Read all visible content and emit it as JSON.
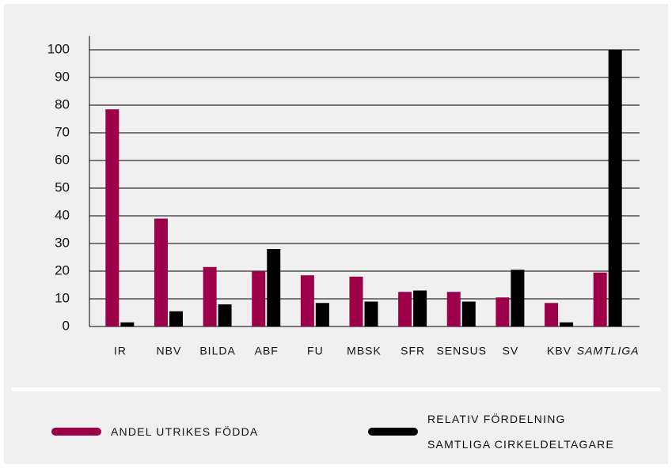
{
  "chart_data": {
    "type": "bar",
    "categories": [
      "IR",
      "NBV",
      "BILDA",
      "ABF",
      "FU",
      "MBSK",
      "SFR",
      "SENSUS",
      "SV",
      "KBV",
      "SAMTLIGA"
    ],
    "series": [
      {
        "name": "ANDEL UTRIKES FÖDDA",
        "color": "#9b0049",
        "values": [
          78.5,
          39,
          21.5,
          20,
          18.5,
          18,
          12.5,
          12.5,
          10.5,
          8.5,
          19.5
        ]
      },
      {
        "name": "RELATIV FÖRDELNING SAMTLIGA CIRKELDELTAGARE",
        "color": "#000000",
        "values": [
          1.5,
          5.5,
          8,
          28,
          8.5,
          9,
          13,
          9,
          20.5,
          1.5,
          100
        ]
      }
    ],
    "ylim": [
      0,
      105
    ],
    "yticks": [
      0,
      10,
      20,
      30,
      40,
      50,
      60,
      70,
      80,
      90,
      100
    ],
    "grid": true,
    "legend": "bottom"
  }
}
